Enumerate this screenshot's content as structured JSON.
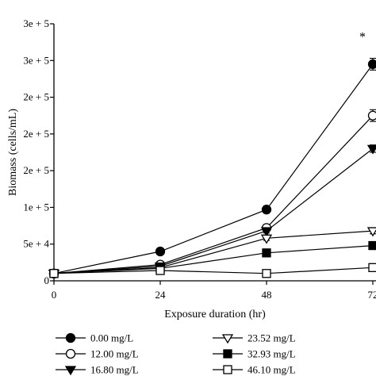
{
  "chart_data": {
    "type": "line",
    "xlabel": "Exposure duration (hr)",
    "ylabel": "Biomass (cells/mL)",
    "x": [
      0,
      24,
      48,
      72
    ],
    "x_tick_labels": [
      "0",
      "24",
      "48",
      "72"
    ],
    "xlim": [
      0,
      72
    ],
    "ylim": [
      0,
      350000
    ],
    "y_ticks": [
      0,
      50000,
      100000,
      150000,
      200000,
      250000,
      300000,
      350000
    ],
    "y_tick_labels": [
      "0",
      "5e + 4",
      "1e + 5",
      "2e + 5",
      "2e + 5",
      "2e + 5",
      "3e + 5",
      "3e + 5"
    ],
    "annotation": "*",
    "legend_position": "bottom",
    "series": [
      {
        "name": "0.00 mg/L",
        "marker": "circle-filled",
        "values": [
          10000,
          40000,
          97000,
          295000
        ],
        "errors": [
          0,
          2000,
          5000,
          8000
        ]
      },
      {
        "name": "12.00 mg/L",
        "marker": "circle-open",
        "values": [
          10000,
          22000,
          72000,
          225000
        ],
        "errors": [
          0,
          2000,
          4000,
          8000
        ]
      },
      {
        "name": "16.80 mg/L",
        "marker": "triangle-down-filled",
        "values": [
          10000,
          20000,
          68000,
          180000
        ],
        "errors": [
          0,
          1000,
          3000,
          5000
        ]
      },
      {
        "name": "23.52 mg/L",
        "marker": "triangle-down-open",
        "values": [
          10000,
          18000,
          58000,
          68000
        ],
        "errors": [
          0,
          1000,
          3000,
          4000
        ]
      },
      {
        "name": "32.93 mg/L",
        "marker": "square-filled",
        "values": [
          10000,
          17000,
          38000,
          48000
        ],
        "errors": [
          0,
          1000,
          2000,
          3000
        ]
      },
      {
        "name": "46.10 mg/L",
        "marker": "square-open",
        "values": [
          10000,
          14000,
          10000,
          18000
        ],
        "errors": [
          0,
          1000,
          2000,
          5000
        ]
      }
    ]
  }
}
